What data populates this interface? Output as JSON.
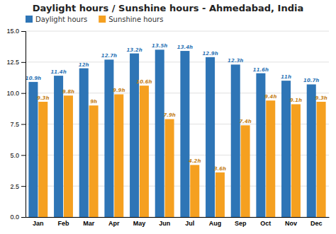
{
  "chart_data": {
    "type": "bar",
    "title": "Daylight hours / Sunshine hours - Ahmedabad, India",
    "categories": [
      "Jan",
      "Feb",
      "Mar",
      "Apr",
      "May",
      "Jun",
      "Jul",
      "Aug",
      "Sep",
      "Oct",
      "Nov",
      "Dec"
    ],
    "series": [
      {
        "name": "Daylight hours",
        "color": "#2e75b6",
        "values": [
          10.9,
          11.4,
          12.0,
          12.7,
          13.2,
          13.5,
          13.4,
          12.9,
          12.3,
          11.6,
          11.0,
          10.7
        ],
        "value_labels": [
          "10.9h",
          "11.4h",
          "12h",
          "12.7h",
          "13.2h",
          "13.5h",
          "13.4h",
          "12.9h",
          "12.3h",
          "11.6h",
          "11h",
          "10.7h"
        ]
      },
      {
        "name": "Sunshine hours",
        "color": "#f5a020",
        "values": [
          9.3,
          9.8,
          9.0,
          9.9,
          10.6,
          7.9,
          4.2,
          3.6,
          7.4,
          9.4,
          9.1,
          9.3
        ],
        "value_labels": [
          "9.3h",
          "9.8h",
          "9h",
          "9.9h",
          "10.6h",
          "7.9h",
          "4.2h",
          "3.6h",
          "7.4h",
          "9.4h",
          "9.1h",
          "9.3h"
        ]
      }
    ],
    "ylim": [
      0,
      15.0
    ],
    "yticks": [
      {
        "value": 0,
        "label": "0.0"
      },
      2.5,
      {
        "value": 5,
        "label": "5.0"
      },
      7.5,
      {
        "value": 10,
        "label": "10.0"
      },
      12.5,
      {
        "value": 15,
        "label": "15.0"
      }
    ],
    "grid": true,
    "legend": "top-left",
    "data_labels": true
  }
}
